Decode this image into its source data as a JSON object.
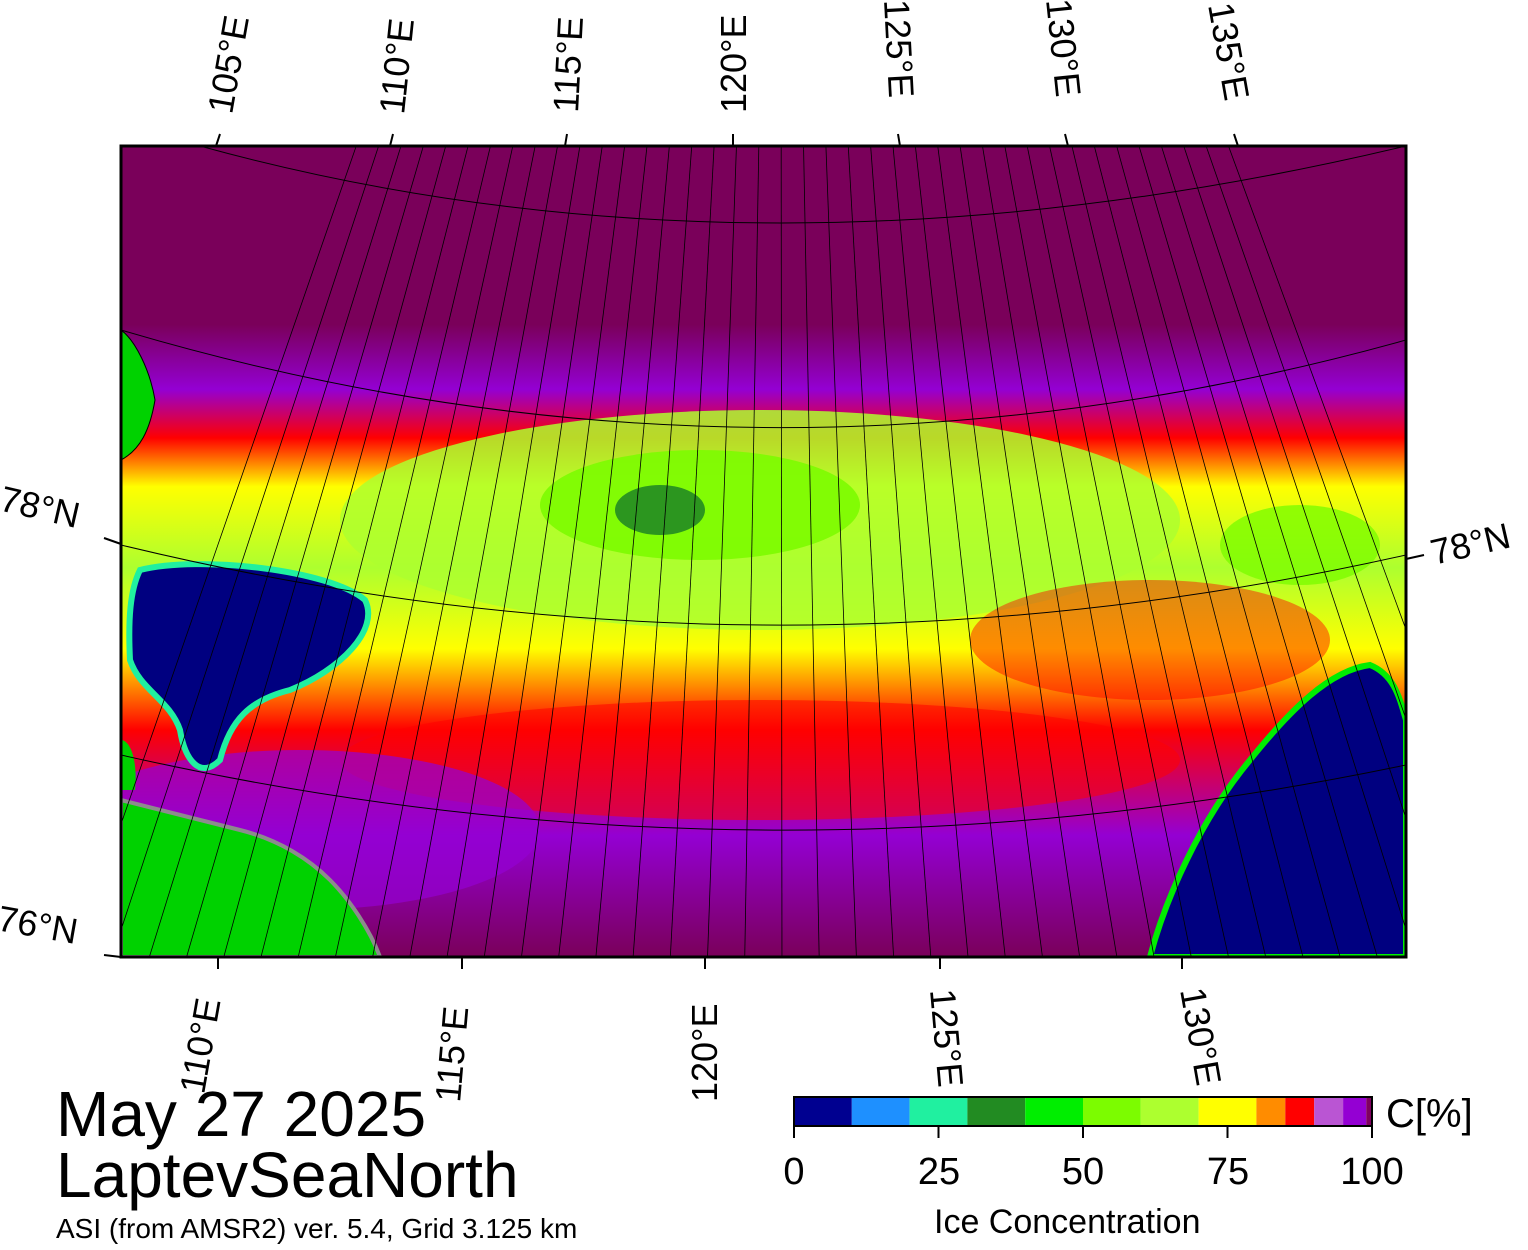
{
  "title": {
    "date": "May 27 2025",
    "region": "LaptevSeaNorth",
    "subtitle": "ASI (from AMSR2) ver. 5.4,  Grid 3.125 km"
  },
  "map": {
    "top_lon_labels": [
      "105°E",
      "110°E",
      "115°E",
      "120°E",
      "125°E",
      "130°E",
      "135°E"
    ],
    "bottom_lon_labels": [
      "110°E",
      "115°E",
      "120°E",
      "125°E",
      "130°E"
    ],
    "lat_labels": [
      "78°N",
      "78°N",
      "76°N"
    ],
    "colors": {
      "land": "#00d200",
      "coast_gray": "#8c8c8c",
      "open_water": "#000080",
      "background_ice_dark": "#7a005a"
    }
  },
  "colorbar": {
    "unit_label": "C[%]",
    "title": "Ice Concentration",
    "ticks": [
      "0",
      "25",
      "50",
      "75",
      "100"
    ],
    "bins": [
      {
        "range": "0-10",
        "color": "#000090"
      },
      {
        "range": "10-20",
        "color": "#1e90ff"
      },
      {
        "range": "20-30",
        "color": "#20f0a0"
      },
      {
        "range": "30-40",
        "color": "#228b22"
      },
      {
        "range": "40-50",
        "color": "#00ee00"
      },
      {
        "range": "50-60",
        "color": "#7cfc00"
      },
      {
        "range": "60-70",
        "color": "#adff2f"
      },
      {
        "range": "70-80",
        "color": "#ffff00"
      },
      {
        "range": "80-85",
        "color": "#ff8c00"
      },
      {
        "range": "85-90",
        "color": "#ff0000"
      },
      {
        "range": "90-95",
        "color": "#ba55d3"
      },
      {
        "range": "95-99",
        "color": "#9400d3"
      },
      {
        "range": "99-100",
        "color": "#800060"
      }
    ]
  }
}
